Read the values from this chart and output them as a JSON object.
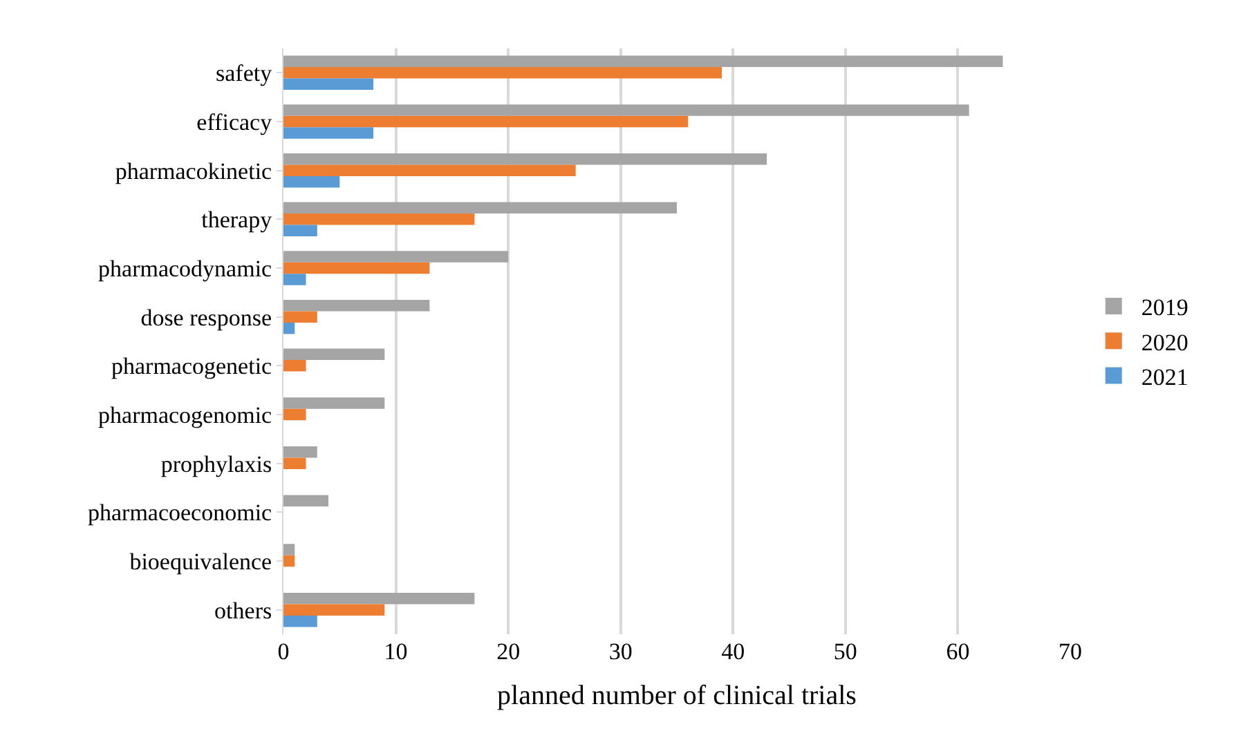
{
  "chart_data": {
    "type": "bar",
    "orientation": "horizontal",
    "xlabel": "planned number of clinical trials",
    "categories": [
      "safety",
      "efficacy",
      "pharmacokinetic",
      "therapy",
      "pharmacodynamic",
      "dose response",
      "pharmacogenetic",
      "pharmacogenomic",
      "prophylaxis",
      "pharmacoeconomic",
      "bioequivalence",
      "others"
    ],
    "series": [
      {
        "name": "2019",
        "color": "#a5a5a5",
        "values": [
          64,
          61,
          43,
          35,
          20,
          13,
          9,
          9,
          3,
          4,
          1,
          17
        ]
      },
      {
        "name": "2020",
        "color": "#ed7d31",
        "values": [
          39,
          36,
          26,
          17,
          13,
          3,
          2,
          2,
          2,
          0,
          1,
          9
        ]
      },
      {
        "name": "2021",
        "color": "#5b9bd5",
        "values": [
          8,
          8,
          5,
          3,
          2,
          1,
          0,
          0,
          0,
          0,
          0,
          3
        ]
      }
    ],
    "xlim": [
      0,
      70
    ],
    "xticks": [
      0,
      10,
      20,
      30,
      40,
      50,
      60,
      70
    ],
    "grid": "x",
    "legend": "right"
  }
}
